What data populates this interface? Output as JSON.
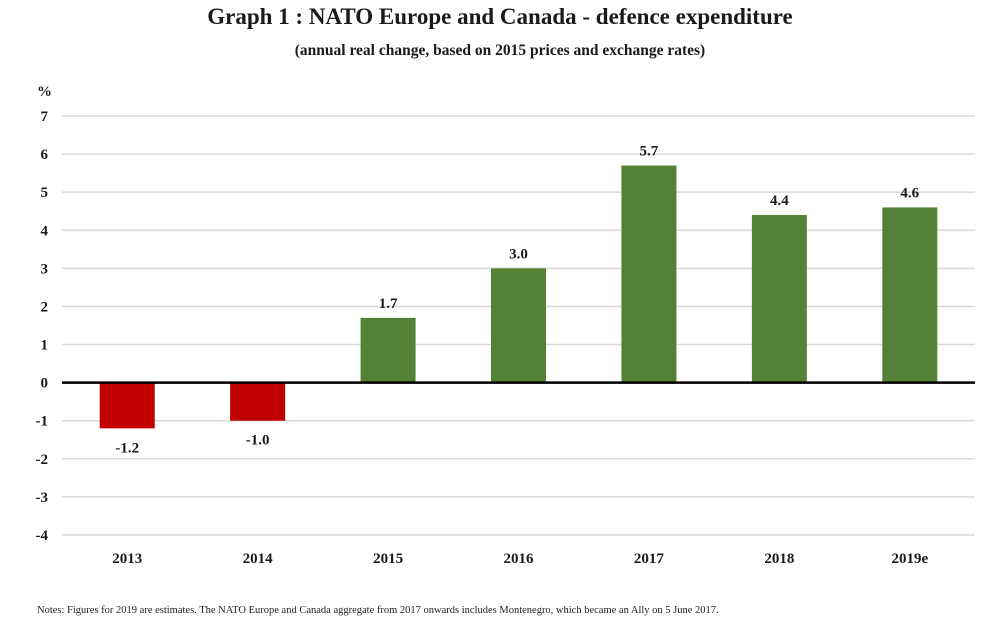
{
  "chart_data": {
    "type": "bar",
    "title": "Graph 1 : NATO Europe and Canada - defence expenditure",
    "subtitle": "(annual real change, based on 2015 prices and exchange rates)",
    "xlabel": "",
    "ylabel": "%",
    "ylim": [
      -4,
      7
    ],
    "yticks": [
      7,
      6,
      5,
      4,
      3,
      2,
      1,
      0,
      -1,
      -2,
      -3,
      -4
    ],
    "grid": true,
    "categories": [
      "2013",
      "2014",
      "2015",
      "2016",
      "2017",
      "2018",
      "2019e"
    ],
    "values": [
      -1.2,
      -1.0,
      1.7,
      3.0,
      5.7,
      4.4,
      4.6
    ],
    "data_labels": [
      "-1.2",
      "-1.0",
      "1.7",
      "3.0",
      "5.7",
      "4.4",
      "4.6"
    ],
    "colors": {
      "positive": "#538135",
      "negative": "#C00000",
      "zero_line": "#000000",
      "grid": "#d9d9d9"
    },
    "note": "Notes: Figures for 2019 are estimates. The NATO Europe and Canada aggregate from 2017 onwards includes Montenegro, which became an Ally on 5 June 2017."
  }
}
